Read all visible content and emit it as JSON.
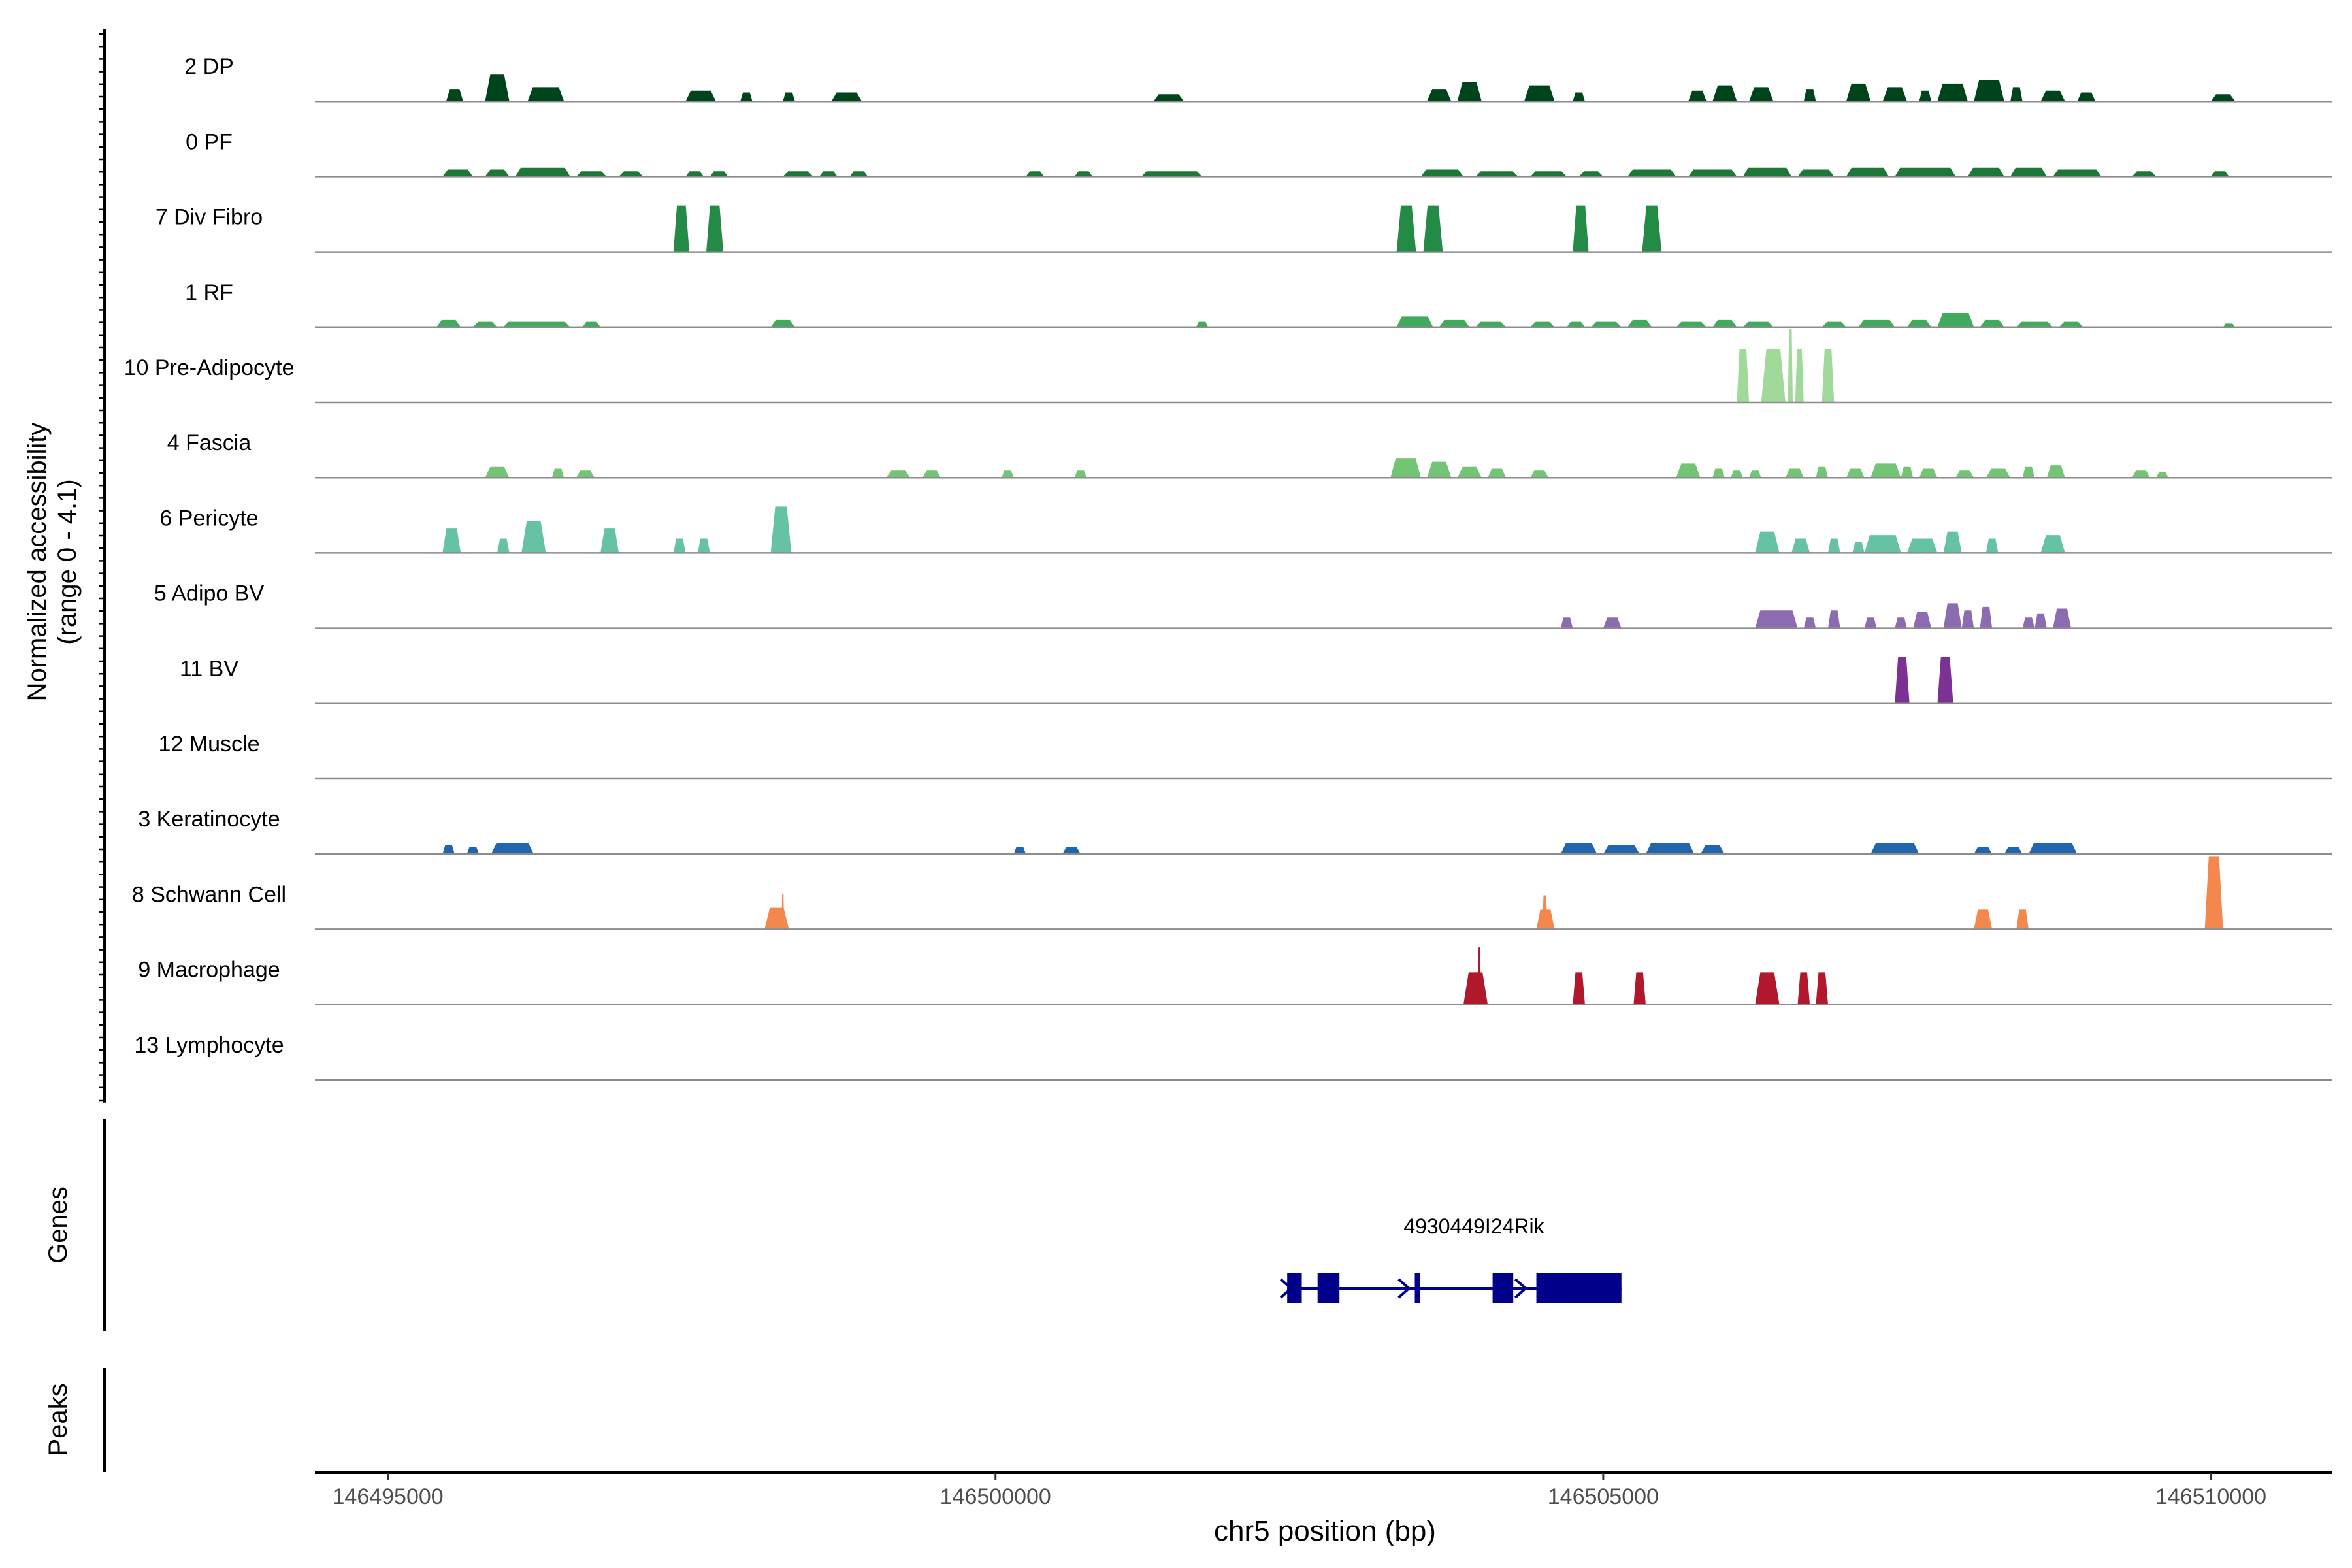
{
  "chart_data": {
    "type": "area",
    "title": "",
    "ylabel_line1": "Normalized accessibility",
    "ylabel_line2": "(range 0 - 4.1)",
    "yrange": [
      0,
      4.1
    ],
    "xlabel": "chr5 position (bp)",
    "xlim": [
      146494400,
      146511000
    ],
    "xticks": [
      146495000,
      146500000,
      146505000,
      146510000
    ],
    "xtick_labels": [
      "146495000",
      "146500000",
      "146505000",
      "146510000"
    ],
    "tracks": [
      {
        "name": "2 DP",
        "color": "#00441b",
        "regions": [
          [
            146495480,
            146495620,
            0.7
          ],
          [
            146495800,
            146496000,
            1.5
          ],
          [
            146496150,
            146496450,
            0.8
          ],
          [
            146497450,
            146497700,
            0.6
          ],
          [
            146497900,
            146498000,
            0.5
          ],
          [
            146498250,
            146498350,
            0.5
          ],
          [
            146498650,
            146498900,
            0.5
          ],
          [
            146501300,
            146501550,
            0.4
          ],
          [
            146503550,
            146503750,
            0.7
          ],
          [
            146503800,
            146504000,
            1.1
          ],
          [
            146504350,
            146504600,
            0.9
          ],
          [
            146504750,
            146504850,
            0.5
          ],
          [
            146505700,
            146505850,
            0.6
          ],
          [
            146505900,
            146506100,
            0.9
          ],
          [
            146506200,
            146506400,
            0.8
          ],
          [
            146506650,
            146506750,
            0.7
          ],
          [
            146507000,
            146507200,
            1.0
          ],
          [
            146507300,
            146507500,
            0.8
          ],
          [
            146507600,
            146507700,
            0.6
          ],
          [
            146507750,
            146508000,
            1.0
          ],
          [
            146508050,
            146508300,
            1.2
          ],
          [
            146508350,
            146508450,
            0.8
          ],
          [
            146508600,
            146508800,
            0.6
          ],
          [
            146508900,
            146509050,
            0.5
          ],
          [
            146510000,
            146510200,
            0.4
          ]
        ]
      },
      {
        "name": "0 PF",
        "color": "#1b7837",
        "regions": [
          [
            146495450,
            146495700,
            0.4
          ],
          [
            146495800,
            146496000,
            0.4
          ],
          [
            146496050,
            146496500,
            0.5
          ],
          [
            146496550,
            146496800,
            0.3
          ],
          [
            146496900,
            146497100,
            0.3
          ],
          [
            146497450,
            146497600,
            0.3
          ],
          [
            146497650,
            146497800,
            0.3
          ],
          [
            146498250,
            146498500,
            0.3
          ],
          [
            146498550,
            146498700,
            0.3
          ],
          [
            146498800,
            146498950,
            0.3
          ],
          [
            146500250,
            146500400,
            0.3
          ],
          [
            146500650,
            146500800,
            0.3
          ],
          [
            146501200,
            146501700,
            0.3
          ],
          [
            146503500,
            146503850,
            0.4
          ],
          [
            146503950,
            146504300,
            0.3
          ],
          [
            146504400,
            146504700,
            0.3
          ],
          [
            146504800,
            146505000,
            0.3
          ],
          [
            146505200,
            146505600,
            0.4
          ],
          [
            146505700,
            146506100,
            0.4
          ],
          [
            146506150,
            146506550,
            0.5
          ],
          [
            146506600,
            146506900,
            0.4
          ],
          [
            146507000,
            146507350,
            0.5
          ],
          [
            146507400,
            146507900,
            0.5
          ],
          [
            146508000,
            146508300,
            0.5
          ],
          [
            146508350,
            146508650,
            0.5
          ],
          [
            146508700,
            146509100,
            0.4
          ],
          [
            146509350,
            146509550,
            0.3
          ],
          [
            146510000,
            146510150,
            0.3
          ]
        ]
      },
      {
        "name": "7 Div Fibro",
        "color": "#238b45",
        "regions": [
          [
            146497350,
            146497480,
            2.6
          ],
          [
            146497620,
            146497760,
            2.6
          ],
          [
            146503300,
            146503460,
            2.6
          ],
          [
            146503520,
            146503680,
            2.6
          ],
          [
            146504750,
            146504880,
            2.6
          ],
          [
            146505320,
            146505480,
            2.6
          ]
        ]
      },
      {
        "name": "1 RF",
        "color": "#41ab5d",
        "regions": [
          [
            146495400,
            146495600,
            0.4
          ],
          [
            146495700,
            146495900,
            0.3
          ],
          [
            146495950,
            146496500,
            0.3
          ],
          [
            146496600,
            146496750,
            0.3
          ],
          [
            146498150,
            146498350,
            0.4
          ],
          [
            146501650,
            146501750,
            0.3
          ],
          [
            146503300,
            146503600,
            0.6
          ],
          [
            146503650,
            146503900,
            0.4
          ],
          [
            146503950,
            146504200,
            0.3
          ],
          [
            146504400,
            146504600,
            0.3
          ],
          [
            146504700,
            146504850,
            0.3
          ],
          [
            146504900,
            146505150,
            0.3
          ],
          [
            146505200,
            146505400,
            0.4
          ],
          [
            146505600,
            146505850,
            0.3
          ],
          [
            146505900,
            146506100,
            0.4
          ],
          [
            146506150,
            146506400,
            0.3
          ],
          [
            146506800,
            146507000,
            0.3
          ],
          [
            146507100,
            146507400,
            0.4
          ],
          [
            146507500,
            146507700,
            0.4
          ],
          [
            146507750,
            146508050,
            0.8
          ],
          [
            146508100,
            146508300,
            0.4
          ],
          [
            146508400,
            146508700,
            0.3
          ],
          [
            146508750,
            146508950,
            0.3
          ],
          [
            146510100,
            146510200,
            0.2
          ]
        ]
      },
      {
        "name": "10 Pre-Adipocyte",
        "color": "#a1d99b",
        "regions": [
          [
            146506100,
            146506200,
            3.0
          ],
          [
            146506300,
            146506500,
            3.0
          ],
          [
            146506520,
            146506560,
            4.1
          ],
          [
            146506580,
            146506650,
            3.0
          ],
          [
            146506800,
            146506900,
            3.0
          ]
        ]
      },
      {
        "name": "4 Fascia",
        "color": "#74c476",
        "regions": [
          [
            146495800,
            146496000,
            0.6
          ],
          [
            146496350,
            146496450,
            0.5
          ],
          [
            146496550,
            146496700,
            0.4
          ],
          [
            146499100,
            146499300,
            0.4
          ],
          [
            146499400,
            146499550,
            0.4
          ],
          [
            146500050,
            146500150,
            0.4
          ],
          [
            146500650,
            146500750,
            0.4
          ],
          [
            146503250,
            146503500,
            1.1
          ],
          [
            146503550,
            146503750,
            0.9
          ],
          [
            146503800,
            146504000,
            0.6
          ],
          [
            146504050,
            146504200,
            0.5
          ],
          [
            146504400,
            146504550,
            0.4
          ],
          [
            146505600,
            146505800,
            0.8
          ],
          [
            146505900,
            146506000,
            0.5
          ],
          [
            146506050,
            146506150,
            0.4
          ],
          [
            146506200,
            146506300,
            0.4
          ],
          [
            146506500,
            146506650,
            0.5
          ],
          [
            146506750,
            146506850,
            0.6
          ],
          [
            146507000,
            146507150,
            0.5
          ],
          [
            146507200,
            146507450,
            0.8
          ],
          [
            146507450,
            146507550,
            0.6
          ],
          [
            146507600,
            146507750,
            0.5
          ],
          [
            146507900,
            146508050,
            0.4
          ],
          [
            146508150,
            146508350,
            0.5
          ],
          [
            146508450,
            146508550,
            0.6
          ],
          [
            146508650,
            146508800,
            0.7
          ],
          [
            146509350,
            146509500,
            0.4
          ],
          [
            146509550,
            146509650,
            0.3
          ]
        ]
      },
      {
        "name": "6 Pericyte",
        "color": "#66c2a4",
        "regions": [
          [
            146495450,
            146495600,
            1.4
          ],
          [
            146495900,
            146496000,
            0.8
          ],
          [
            146496100,
            146496300,
            1.8
          ],
          [
            146496750,
            146496900,
            1.4
          ],
          [
            146497350,
            146497450,
            0.8
          ],
          [
            146497550,
            146497650,
            0.8
          ],
          [
            146498150,
            146498320,
            2.6
          ],
          [
            146506250,
            146506450,
            1.2
          ],
          [
            146506550,
            146506700,
            0.8
          ],
          [
            146506850,
            146506950,
            0.8
          ],
          [
            146507050,
            146507150,
            0.6
          ],
          [
            146507150,
            146507450,
            1.0
          ],
          [
            146507500,
            146507750,
            0.8
          ],
          [
            146507800,
            146507950,
            1.2
          ],
          [
            146508150,
            146508250,
            0.8
          ],
          [
            146508600,
            146508800,
            1.0
          ]
        ]
      },
      {
        "name": "5 Adipo BV",
        "color": "#8c6bb1",
        "regions": [
          [
            146504650,
            146504750,
            0.6
          ],
          [
            146505000,
            146505150,
            0.6
          ],
          [
            146506250,
            146506600,
            1.0
          ],
          [
            146506650,
            146506750,
            0.6
          ],
          [
            146506850,
            146506950,
            1.0
          ],
          [
            146507150,
            146507250,
            0.6
          ],
          [
            146507400,
            146507500,
            0.6
          ],
          [
            146507550,
            146507700,
            0.9
          ],
          [
            146507800,
            146507950,
            1.4
          ],
          [
            146507950,
            146508050,
            1.0
          ],
          [
            146508100,
            146508200,
            1.2
          ],
          [
            146508450,
            146508550,
            0.6
          ],
          [
            146508550,
            146508650,
            0.8
          ],
          [
            146508700,
            146508850,
            1.1
          ]
        ]
      },
      {
        "name": "11 BV",
        "color": "#7b3294",
        "regions": [
          [
            146507400,
            146507520,
            2.6
          ],
          [
            146507750,
            146507880,
            2.6
          ]
        ]
      },
      {
        "name": "12 Muscle",
        "color": "#6a51a3",
        "regions": []
      },
      {
        "name": "3 Keratinocyte",
        "color": "#2166ac",
        "regions": [
          [
            146495450,
            146495550,
            0.5
          ],
          [
            146495650,
            146495750,
            0.4
          ],
          [
            146495850,
            146496200,
            0.6
          ],
          [
            146500150,
            146500250,
            0.4
          ],
          [
            146500550,
            146500700,
            0.4
          ],
          [
            146504650,
            146504950,
            0.6
          ],
          [
            146505000,
            146505300,
            0.5
          ],
          [
            146505350,
            146505750,
            0.6
          ],
          [
            146505800,
            146506000,
            0.5
          ],
          [
            146507200,
            146507600,
            0.6
          ],
          [
            146508050,
            146508200,
            0.4
          ],
          [
            146508300,
            146508450,
            0.4
          ],
          [
            146508500,
            146508900,
            0.6
          ]
        ]
      },
      {
        "name": "8 Schwann Cell",
        "color": "#f4874e",
        "regions": [
          [
            146498100,
            146498300,
            1.2
          ],
          [
            146498240,
            146498260,
            2.0
          ],
          [
            146504450,
            146504600,
            1.1
          ],
          [
            146504500,
            146504540,
            1.9
          ],
          [
            146508050,
            146508200,
            1.1
          ],
          [
            146508400,
            146508500,
            1.1
          ],
          [
            146509950,
            146510100,
            4.1
          ]
        ]
      },
      {
        "name": "9 Macrophage",
        "color": "#b2182b",
        "regions": [
          [
            146503850,
            146504050,
            1.8
          ],
          [
            146503970,
            146503990,
            3.2
          ],
          [
            146504750,
            146504850,
            1.8
          ],
          [
            146505250,
            146505350,
            1.8
          ],
          [
            146506250,
            146506450,
            1.8
          ],
          [
            146506600,
            146506700,
            1.8
          ],
          [
            146506750,
            146506850,
            1.8
          ]
        ]
      },
      {
        "name": "13 Lymphocyte",
        "color": "#b2182b",
        "regions": []
      }
    ],
    "genes_label": "Genes",
    "peaks_label": "Peaks",
    "gene": {
      "name": "4930449I24Rik",
      "color": "#00008b",
      "start": 146502400,
      "end": 146505150,
      "exons": [
        [
          146502400,
          146502520
        ],
        [
          146502650,
          146502830
        ],
        [
          146503450,
          146503480
        ],
        [
          146504090,
          146504260
        ],
        [
          146504450,
          146505150
        ]
      ],
      "arrows": [
        146502400,
        146503370,
        146504330
      ]
    }
  }
}
